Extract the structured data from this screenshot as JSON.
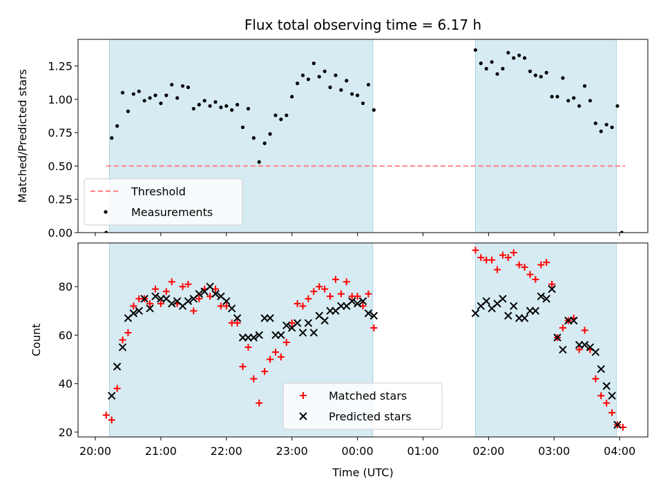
{
  "chart_data": [
    {
      "type": "scatter",
      "title": "Flux total observing time = 6.17 h",
      "xlabel": "",
      "ylabel": "Matched/Predicted stars",
      "ylim": [
        0,
        1.45
      ],
      "yticks": [
        "0.00",
        "0.25",
        "0.50",
        "0.75",
        "1.00",
        "1.25"
      ],
      "shaded_intervals": [
        [
          "20:13",
          "00:14"
        ],
        [
          "01:48",
          "03:57"
        ]
      ],
      "legend_position": "lower-left",
      "threshold": {
        "name": "Threshold",
        "y": 0.5,
        "x_range": [
          "20:10",
          "04:05"
        ],
        "color": "#ff7f7f"
      },
      "series": [
        {
          "name": "Measurements",
          "color": "#000000",
          "points": [
            [
              "20:10",
              0.0
            ],
            [
              "20:15",
              0.71
            ],
            [
              "20:20",
              0.8
            ],
            [
              "20:25",
              1.05
            ],
            [
              "20:30",
              0.91
            ],
            [
              "20:35",
              1.04
            ],
            [
              "20:40",
              1.06
            ],
            [
              "20:45",
              0.99
            ],
            [
              "20:50",
              1.01
            ],
            [
              "20:55",
              1.03
            ],
            [
              "21:00",
              0.97
            ],
            [
              "21:05",
              1.03
            ],
            [
              "21:10",
              1.11
            ],
            [
              "21:15",
              1.01
            ],
            [
              "21:20",
              1.1
            ],
            [
              "21:25",
              1.09
            ],
            [
              "21:30",
              0.93
            ],
            [
              "21:35",
              0.96
            ],
            [
              "21:40",
              0.99
            ],
            [
              "21:45",
              0.95
            ],
            [
              "21:50",
              0.98
            ],
            [
              "21:55",
              0.94
            ],
            [
              "22:00",
              0.95
            ],
            [
              "22:05",
              0.92
            ],
            [
              "22:10",
              0.96
            ],
            [
              "22:15",
              0.79
            ],
            [
              "22:20",
              0.93
            ],
            [
              "22:25",
              0.71
            ],
            [
              "22:30",
              0.53
            ],
            [
              "22:35",
              0.67
            ],
            [
              "22:40",
              0.74
            ],
            [
              "22:45",
              0.88
            ],
            [
              "22:50",
              0.85
            ],
            [
              "22:55",
              0.88
            ],
            [
              "23:00",
              1.02
            ],
            [
              "23:05",
              1.12
            ],
            [
              "23:10",
              1.18
            ],
            [
              "23:15",
              1.15
            ],
            [
              "23:20",
              1.27
            ],
            [
              "23:25",
              1.17
            ],
            [
              "23:30",
              1.21
            ],
            [
              "23:35",
              1.09
            ],
            [
              "23:40",
              1.18
            ],
            [
              "23:45",
              1.07
            ],
            [
              "23:50",
              1.14
            ],
            [
              "23:55",
              1.04
            ],
            [
              "00:00",
              1.03
            ],
            [
              "00:05",
              0.97
            ],
            [
              "00:10",
              1.11
            ],
            [
              "00:15",
              0.92
            ],
            [
              "01:48",
              1.37
            ],
            [
              "01:53",
              1.27
            ],
            [
              "01:58",
              1.23
            ],
            [
              "02:03",
              1.28
            ],
            [
              "02:08",
              1.19
            ],
            [
              "02:13",
              1.23
            ],
            [
              "02:18",
              1.35
            ],
            [
              "02:23",
              1.31
            ],
            [
              "02:28",
              1.33
            ],
            [
              "02:33",
              1.31
            ],
            [
              "02:38",
              1.21
            ],
            [
              "02:43",
              1.18
            ],
            [
              "02:48",
              1.17
            ],
            [
              "02:53",
              1.2
            ],
            [
              "02:58",
              1.02
            ],
            [
              "03:03",
              1.02
            ],
            [
              "03:08",
              1.16
            ],
            [
              "03:13",
              0.99
            ],
            [
              "03:18",
              1.01
            ],
            [
              "03:23",
              0.95
            ],
            [
              "03:28",
              1.1
            ],
            [
              "03:33",
              0.99
            ],
            [
              "03:38",
              0.82
            ],
            [
              "03:43",
              0.76
            ],
            [
              "03:48",
              0.81
            ],
            [
              "03:53",
              0.79
            ],
            [
              "03:58",
              0.95
            ],
            [
              "04:02",
              0.0
            ]
          ]
        }
      ]
    },
    {
      "type": "scatter",
      "title": "",
      "xlabel": "Time (UTC)",
      "ylabel": "Count",
      "ylim": [
        18,
        98
      ],
      "yticks": [
        "20",
        "40",
        "60",
        "80"
      ],
      "xticks": [
        "20:00",
        "21:00",
        "22:00",
        "23:00",
        "00:00",
        "01:00",
        "02:00",
        "03:00",
        "04:00"
      ],
      "shaded_intervals": [
        [
          "20:13",
          "00:14"
        ],
        [
          "01:48",
          "03:57"
        ]
      ],
      "legend_position": "lower-center",
      "series": [
        {
          "name": "Matched stars",
          "marker": "plus",
          "color": "#ff0000",
          "points": [
            [
              "20:10",
              27
            ],
            [
              "20:15",
              25
            ],
            [
              "20:20",
              38
            ],
            [
              "20:25",
              58
            ],
            [
              "20:30",
              61
            ],
            [
              "20:35",
              72
            ],
            [
              "20:40",
              75
            ],
            [
              "20:45",
              75
            ],
            [
              "20:50",
              73
            ],
            [
              "20:55",
              79
            ],
            [
              "21:00",
              73
            ],
            [
              "21:05",
              78
            ],
            [
              "21:10",
              82
            ],
            [
              "21:15",
              73
            ],
            [
              "21:20",
              80
            ],
            [
              "21:25",
              81
            ],
            [
              "21:30",
              70
            ],
            [
              "21:35",
              75
            ],
            [
              "21:40",
              79
            ],
            [
              "21:45",
              76
            ],
            [
              "21:50",
              79
            ],
            [
              "21:55",
              72
            ],
            [
              "22:00",
              72
            ],
            [
              "22:05",
              65
            ],
            [
              "22:10",
              65
            ],
            [
              "22:15",
              47
            ],
            [
              "22:20",
              55
            ],
            [
              "22:25",
              42
            ],
            [
              "22:30",
              32
            ],
            [
              "22:35",
              45
            ],
            [
              "22:40",
              50
            ],
            [
              "22:45",
              53
            ],
            [
              "22:50",
              51
            ],
            [
              "22:55",
              57
            ],
            [
              "23:00",
              65
            ],
            [
              "23:05",
              73
            ],
            [
              "23:10",
              72
            ],
            [
              "23:15",
              75
            ],
            [
              "23:20",
              78
            ],
            [
              "23:25",
              80
            ],
            [
              "23:30",
              79
            ],
            [
              "23:35",
              76
            ],
            [
              "23:40",
              83
            ],
            [
              "23:45",
              77
            ],
            [
              "23:50",
              82
            ],
            [
              "23:55",
              76
            ],
            [
              "00:00",
              76
            ],
            [
              "00:05",
              72
            ],
            [
              "00:10",
              77
            ],
            [
              "00:15",
              63
            ],
            [
              "01:48",
              95
            ],
            [
              "01:53",
              92
            ],
            [
              "01:58",
              91
            ],
            [
              "02:03",
              91
            ],
            [
              "02:08",
              87
            ],
            [
              "02:13",
              93
            ],
            [
              "02:18",
              92
            ],
            [
              "02:23",
              94
            ],
            [
              "02:28",
              89
            ],
            [
              "02:33",
              88
            ],
            [
              "02:38",
              85
            ],
            [
              "02:43",
              83
            ],
            [
              "02:48",
              89
            ],
            [
              "02:53",
              90
            ],
            [
              "02:58",
              81
            ],
            [
              "03:03",
              59
            ],
            [
              "03:08",
              63
            ],
            [
              "03:13",
              66
            ],
            [
              "03:18",
              67
            ],
            [
              "03:23",
              54
            ],
            [
              "03:28",
              62
            ],
            [
              "03:33",
              54
            ],
            [
              "03:38",
              42
            ],
            [
              "03:43",
              35
            ],
            [
              "03:48",
              32
            ],
            [
              "03:53",
              28
            ],
            [
              "03:58",
              23
            ],
            [
              "04:03",
              22
            ]
          ]
        },
        {
          "name": "Predicted stars",
          "marker": "x",
          "color": "#000000",
          "points": [
            [
              "20:15",
              35
            ],
            [
              "20:20",
              47
            ],
            [
              "20:25",
              55
            ],
            [
              "20:30",
              67
            ],
            [
              "20:35",
              69
            ],
            [
              "20:40",
              70
            ],
            [
              "20:45",
              75
            ],
            [
              "20:50",
              71
            ],
            [
              "20:55",
              76
            ],
            [
              "21:00",
              75
            ],
            [
              "21:05",
              75
            ],
            [
              "21:10",
              73
            ],
            [
              "21:15",
              74
            ],
            [
              "21:20",
              72
            ],
            [
              "21:25",
              74
            ],
            [
              "21:30",
              75
            ],
            [
              "21:35",
              77
            ],
            [
              "21:40",
              78
            ],
            [
              "21:45",
              80
            ],
            [
              "21:50",
              77
            ],
            [
              "21:55",
              76
            ],
            [
              "22:00",
              74
            ],
            [
              "22:05",
              71
            ],
            [
              "22:10",
              67
            ],
            [
              "22:15",
              59
            ],
            [
              "22:20",
              59
            ],
            [
              "22:25",
              59
            ],
            [
              "22:30",
              60
            ],
            [
              "22:35",
              67
            ],
            [
              "22:40",
              67
            ],
            [
              "22:45",
              60
            ],
            [
              "22:50",
              60
            ],
            [
              "22:55",
              64
            ],
            [
              "23:00",
              63
            ],
            [
              "23:05",
              65
            ],
            [
              "23:10",
              61
            ],
            [
              "23:15",
              65
            ],
            [
              "23:20",
              61
            ],
            [
              "23:25",
              68
            ],
            [
              "23:30",
              66
            ],
            [
              "23:35",
              70
            ],
            [
              "23:40",
              70
            ],
            [
              "23:45",
              72
            ],
            [
              "23:50",
              72
            ],
            [
              "23:55",
              74
            ],
            [
              "00:00",
              73
            ],
            [
              "00:05",
              74
            ],
            [
              "00:10",
              69
            ],
            [
              "00:15",
              68
            ],
            [
              "01:48",
              69
            ],
            [
              "01:53",
              72
            ],
            [
              "01:58",
              74
            ],
            [
              "02:03",
              71
            ],
            [
              "02:08",
              73
            ],
            [
              "02:13",
              75
            ],
            [
              "02:18",
              68
            ],
            [
              "02:23",
              72
            ],
            [
              "02:28",
              67
            ],
            [
              "02:33",
              67
            ],
            [
              "02:38",
              70
            ],
            [
              "02:43",
              70
            ],
            [
              "02:48",
              76
            ],
            [
              "02:53",
              75
            ],
            [
              "02:58",
              79
            ],
            [
              "03:03",
              59
            ],
            [
              "03:08",
              54
            ],
            [
              "03:13",
              66
            ],
            [
              "03:18",
              66
            ],
            [
              "03:23",
              56
            ],
            [
              "03:28",
              56
            ],
            [
              "03:33",
              55
            ],
            [
              "03:38",
              53
            ],
            [
              "03:43",
              46
            ],
            [
              "03:48",
              39
            ],
            [
              "03:53",
              35
            ],
            [
              "03:58",
              23
            ]
          ]
        }
      ]
    }
  ]
}
